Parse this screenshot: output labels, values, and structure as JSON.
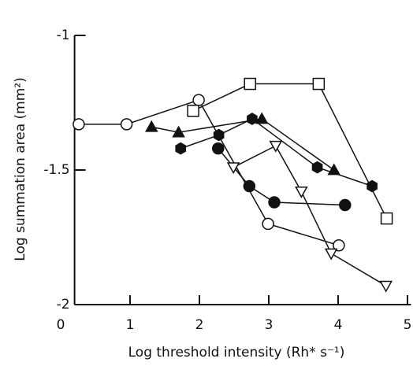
{
  "chart_data": {
    "type": "line",
    "xlabel": "Log threshold intensity (Rh* s⁻¹)",
    "ylabel": "Log summation area (mm²)",
    "xlim": [
      0.2,
      5.05
    ],
    "xticks": [
      0,
      1,
      2,
      3,
      4,
      5
    ],
    "ylim": [
      -2,
      -1
    ],
    "yticks": [
      -1,
      -1.5,
      -2
    ],
    "color": "#111111",
    "series": [
      {
        "marker": "circle",
        "filled": false,
        "x": [
          0.26,
          0.95,
          1.99,
          2.99,
          4.01
        ],
        "values": [
          -1.33,
          -1.33,
          -1.24,
          -1.7,
          -1.78
        ]
      },
      {
        "marker": "triangle",
        "filled": true,
        "x": [
          1.31,
          1.7,
          2.9,
          3.94
        ],
        "values": [
          -1.34,
          -1.36,
          -1.31,
          -1.5
        ]
      },
      {
        "marker": "hexagon",
        "filled": true,
        "x": [
          1.73,
          2.28,
          2.76,
          3.7,
          4.49
        ],
        "values": [
          -1.42,
          -1.37,
          -1.31,
          -1.49,
          -1.56
        ]
      },
      {
        "marker": "square",
        "filled": false,
        "x": [
          1.91,
          2.73,
          3.72,
          4.7
        ],
        "values": [
          -1.28,
          -1.18,
          -1.18,
          -1.68
        ]
      },
      {
        "marker": "circle",
        "filled": true,
        "x": [
          2.27,
          2.72,
          3.08,
          4.1
        ],
        "values": [
          -1.42,
          -1.56,
          -1.62,
          -1.63
        ]
      },
      {
        "marker": "triangle-down",
        "filled": false,
        "x": [
          2.49,
          3.1,
          3.47,
          3.9,
          4.69
        ],
        "values": [
          -1.49,
          -1.41,
          -1.58,
          -1.81,
          -1.93
        ]
      }
    ]
  }
}
